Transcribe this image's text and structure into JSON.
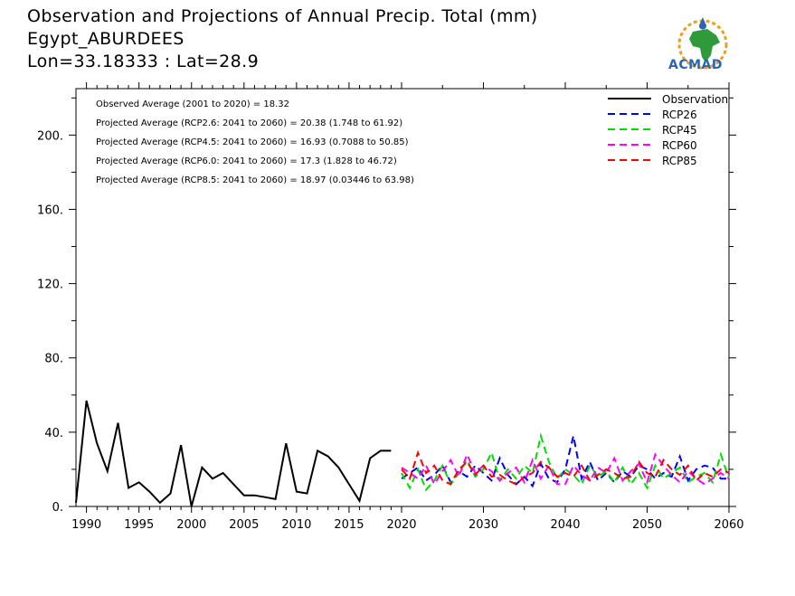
{
  "header": {
    "title": "Observation and Projections of Annual Precip. Total (mm)",
    "station": "Egypt_ABURDEES",
    "coords": "Lon=33.18333 : Lat=28.9"
  },
  "logo": {
    "text": "ACMAD"
  },
  "chart_data": {
    "type": "line",
    "title": "Observation and Projections of Annual Precip. Total (mm)",
    "xlim": [
      1989,
      2060
    ],
    "ylim": [
      0,
      225
    ],
    "x_ticks": [
      1990,
      1995,
      2000,
      2005,
      2010,
      2015,
      2020,
      2030,
      2040,
      2050,
      2060
    ],
    "y_ticks": [
      0,
      40,
      80,
      120,
      160,
      200
    ],
    "y_tick_labels": [
      "0.",
      "40.",
      "80.",
      "120.",
      "160.",
      "200."
    ],
    "annotations": [
      "Observed Average (2001 to 2020) = 18.32",
      "Projected Average (RCP2.6: 2041 to 2060) = 20.38 (1.748 to 61.92)",
      "Projected Average (RCP4.5: 2041 to 2060) = 16.93 (0.7088 to 50.85)",
      "Projected Average (RCP6.0: 2041 to 2060) = 17.3 (1.828 to 46.72)",
      "Projected Average (RCP8.5: 2041 to 2060) = 18.97 (0.03446 to 63.98)"
    ],
    "legend_position": "top-right",
    "series": [
      {
        "name": "Observation",
        "color": "#000000",
        "dash": "solid",
        "x": [
          1989,
          1990,
          1991,
          1992,
          1993,
          1994,
          1995,
          1996,
          1997,
          1998,
          1999,
          2000,
          2001,
          2002,
          2003,
          2004,
          2005,
          2006,
          2007,
          2008,
          2009,
          2010,
          2011,
          2012,
          2013,
          2014,
          2015,
          2016,
          2017,
          2018,
          2019
        ],
        "values": [
          2,
          57,
          34,
          19,
          45,
          10,
          13,
          8,
          2,
          7,
          33,
          0,
          21,
          15,
          18,
          12,
          6,
          6,
          5,
          4,
          34,
          8,
          7,
          30,
          27,
          21,
          12,
          3,
          26,
          30,
          30
        ]
      },
      {
        "name": "RCP26",
        "color": "#0000ff",
        "dash": "dashed",
        "x": [
          2020,
          2021,
          2022,
          2023,
          2024,
          2025,
          2026,
          2027,
          2028,
          2029,
          2030,
          2031,
          2032,
          2033,
          2034,
          2035,
          2036,
          2037,
          2038,
          2039,
          2040,
          2041,
          2042,
          2043,
          2044,
          2045,
          2046,
          2047,
          2048,
          2049,
          2050,
          2051,
          2052,
          2053,
          2054,
          2055,
          2056,
          2057,
          2058,
          2059,
          2060
        ],
        "values": [
          15,
          18,
          21,
          14,
          17,
          22,
          13,
          19,
          16,
          22,
          18,
          14,
          26,
          17,
          12,
          16,
          11,
          23,
          15,
          13,
          20,
          38,
          15,
          24,
          14,
          18,
          13,
          19,
          16,
          22,
          20,
          15,
          18,
          16,
          27,
          14,
          20,
          22,
          21,
          15,
          15
        ]
      },
      {
        "name": "RCP45",
        "color": "#00dd00",
        "dash": "dashed",
        "x": [
          2020,
          2021,
          2022,
          2023,
          2024,
          2025,
          2026,
          2027,
          2028,
          2029,
          2030,
          2031,
          2032,
          2033,
          2034,
          2035,
          2036,
          2037,
          2038,
          2039,
          2040,
          2041,
          2042,
          2043,
          2044,
          2045,
          2046,
          2047,
          2048,
          2049,
          2050,
          2051,
          2052,
          2053,
          2054,
          2055,
          2056,
          2057,
          2058,
          2059,
          2060
        ],
        "values": [
          18,
          10,
          20,
          9,
          14,
          22,
          12,
          18,
          25,
          16,
          20,
          29,
          14,
          20,
          15,
          22,
          18,
          38,
          24,
          15,
          20,
          17,
          12,
          22,
          16,
          19,
          13,
          21,
          12,
          18,
          10,
          22,
          15,
          18,
          21,
          13,
          16,
          18,
          13,
          28,
          15
        ]
      },
      {
        "name": "RCP60",
        "color": "#ff00ff",
        "dash": "dashed",
        "x": [
          2020,
          2021,
          2022,
          2023,
          2024,
          2025,
          2026,
          2027,
          2028,
          2029,
          2030,
          2031,
          2032,
          2033,
          2034,
          2035,
          2036,
          2037,
          2038,
          2039,
          2040,
          2041,
          2042,
          2043,
          2044,
          2045,
          2046,
          2047,
          2048,
          2049,
          2050,
          2051,
          2052,
          2053,
          2054,
          2055,
          2056,
          2057,
          2058,
          2059,
          2060
        ],
        "values": [
          21,
          18,
          15,
          22,
          12,
          19,
          25,
          16,
          28,
          18,
          22,
          19,
          14,
          18,
          21,
          13,
          25,
          15,
          22,
          12,
          12,
          22,
          17,
          14,
          21,
          18,
          26,
          14,
          19,
          23,
          13,
          28,
          22,
          17,
          13,
          19,
          15,
          12,
          15,
          18,
          15
        ]
      },
      {
        "name": "RCP85",
        "color": "#ff0000",
        "dash": "dashed",
        "x": [
          2020,
          2021,
          2022,
          2023,
          2024,
          2025,
          2026,
          2027,
          2028,
          2029,
          2030,
          2031,
          2032,
          2033,
          2034,
          2035,
          2036,
          2037,
          2038,
          2039,
          2040,
          2041,
          2042,
          2043,
          2044,
          2045,
          2046,
          2047,
          2048,
          2049,
          2050,
          2051,
          2052,
          2053,
          2054,
          2055,
          2056,
          2057,
          2058,
          2059,
          2060
        ],
        "values": [
          20,
          15,
          29,
          18,
          22,
          14,
          12,
          20,
          24,
          17,
          22,
          16,
          17,
          14,
          12,
          16,
          18,
          24,
          21,
          16,
          18,
          16,
          22,
          14,
          17,
          20,
          18,
          15,
          16,
          24,
          18,
          16,
          25,
          20,
          17,
          22,
          14,
          18,
          16,
          20,
          18
        ]
      }
    ]
  }
}
